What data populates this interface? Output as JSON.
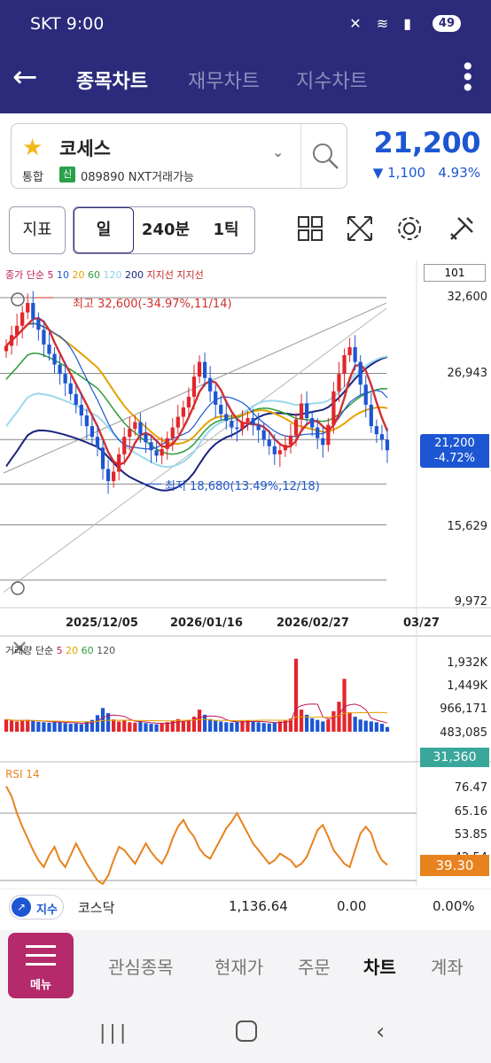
{
  "status": {
    "carrier": "SKT 9:00",
    "battery": "49"
  },
  "topnav": {
    "tabs": [
      "종목차트",
      "재무차트",
      "지수차트"
    ]
  },
  "stock": {
    "name": "코세스",
    "market": "통합",
    "badge": "신",
    "code": "089890 NXT거래가능",
    "price": "21,200",
    "change": "▼ 1,100",
    "change_pct": "4.93%"
  },
  "tools": {
    "indicator": "지표",
    "period": "일",
    "min240": "240분",
    "tick": "1틱"
  },
  "chart": {
    "legend_prefix": "종가 단순",
    "legend_ma": [
      "5",
      "10",
      "20",
      "60",
      "120",
      "200"
    ],
    "legend_support": "지지선 지지선",
    "count_box": "101",
    "high_label": "최고 32,600(-34.97%,11/14)",
    "low_label": "최저 18,680(13.49%,12/18)",
    "y_labels": [
      "32,600",
      "26,943",
      "15,629",
      "9,972"
    ],
    "current_price": "21,200",
    "current_pct": "-4.72%",
    "x_labels": [
      "2025/12/05",
      "2026/01/16",
      "2026/02/27",
      "03/27"
    ]
  },
  "volume": {
    "legend_prefix": "거래량 단순",
    "legend_ma": [
      "5",
      "20",
      "60",
      "120"
    ],
    "y_labels": [
      "1,932K",
      "1,449K",
      "966,171",
      "483,085"
    ],
    "current": "31,360"
  },
  "rsi": {
    "legend": "RSI 14",
    "y_labels": [
      "76.47",
      "65.16",
      "53.85",
      "42.54"
    ],
    "current": "39.30"
  },
  "index_bar": {
    "badge": "지수",
    "name": "코스닥",
    "value": "1,136.64",
    "change": "0.00",
    "pct": "0.00%"
  },
  "bottomnav": {
    "menu": "메뉴",
    "items": [
      "관심종목",
      "현재가",
      "주문",
      "차트",
      "계좌"
    ]
  },
  "colors": {
    "header": "#2c2a7a",
    "up": "#e2262b",
    "down": "#1d56d2",
    "rsi": "#e8821e",
    "menu": "#b42a6b"
  },
  "chart_data": {
    "type": "candlestick",
    "title": "",
    "x_tick_labels": [
      "2025/12/05",
      "2026/01/16",
      "2026/02/27",
      "03/27"
    ],
    "y_tick_labels": [
      32600,
      26943,
      15629,
      9972
    ],
    "ylim": [
      9972,
      32600
    ],
    "high": {
      "value": 32600,
      "date": "11/14"
    },
    "low": {
      "value": 18680,
      "date": "12/18"
    },
    "last_close": 21200,
    "close": [
      29000,
      29800,
      30500,
      31500,
      32200,
      31000,
      30200,
      29100,
      28400,
      27600,
      26900,
      26200,
      25400,
      24600,
      23800,
      23000,
      22200,
      21400,
      19800,
      18900,
      19600,
      20900,
      22200,
      22800,
      23300,
      22400,
      21800,
      21200,
      20800,
      21300,
      22100,
      22900,
      23700,
      24400,
      25200,
      26700,
      27800,
      26600,
      25600,
      24600,
      23900,
      23400,
      22900,
      22800,
      23300,
      23600,
      23100,
      22700,
      22000,
      21500,
      20900,
      21200,
      21600,
      22300,
      23500,
      24700,
      23600,
      22900,
      22100,
      21600,
      23100,
      25600,
      26900,
      28300,
      28900,
      27800,
      26100,
      24600,
      23000,
      22400,
      22000,
      21200
    ],
    "volume_labels": [
      "1,932K",
      "1,449K",
      "966,171",
      "483,085"
    ],
    "volume_last": 31360,
    "volume": [
      310,
      280,
      260,
      290,
      300,
      270,
      250,
      240,
      230,
      260,
      240,
      220,
      200,
      210,
      190,
      260,
      300,
      420,
      600,
      470,
      310,
      260,
      300,
      240,
      230,
      250,
      220,
      200,
      190,
      210,
      240,
      280,
      320,
      250,
      300,
      380,
      560,
      430,
      320,
      280,
      260,
      240,
      230,
      250,
      270,
      290,
      260,
      240,
      220,
      210,
      230,
      260,
      300,
      330,
      1850,
      560,
      430,
      340,
      300,
      260,
      310,
      520,
      760,
      1340,
      490,
      380,
      310,
      280,
      260,
      240,
      200,
      120
    ],
    "rsi": [
      86,
      80,
      70,
      62,
      55,
      48,
      42,
      38,
      45,
      50,
      42,
      38,
      45,
      52,
      46,
      40,
      35,
      30,
      28,
      33,
      42,
      50,
      48,
      44,
      40,
      46,
      52,
      47,
      43,
      40,
      46,
      55,
      62,
      66,
      60,
      56,
      49,
      45,
      43,
      49,
      55,
      61,
      65,
      70,
      64,
      58,
      52,
      48,
      44,
      40,
      42,
      46,
      44,
      42,
      38,
      40,
      44,
      52,
      60,
      63,
      56,
      48,
      44,
      40,
      38,
      48,
      58,
      62,
      58,
      48,
      42,
      39.3
    ],
    "rsi_labels": [
      76.47,
      65.16,
      53.85,
      42.54
    ],
    "rsi_last": 39.3
  }
}
